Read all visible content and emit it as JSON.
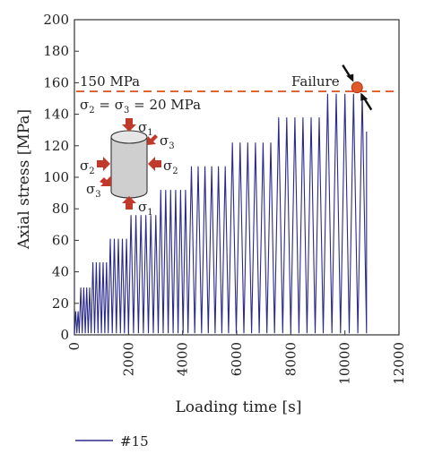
{
  "chart_data": {
    "type": "line",
    "xlabel": "Loading time [s]",
    "ylabel": "Axial stress [MPa]",
    "xlim": [
      0,
      12000
    ],
    "ylim": [
      0,
      200
    ],
    "x_ticks": [
      "0",
      "2000",
      "4000",
      "6000",
      "8000",
      "10000",
      "12000"
    ],
    "y_ticks": [
      "0",
      "20",
      "40",
      "60",
      "80",
      "100",
      "120",
      "140",
      "160",
      "180",
      "200"
    ],
    "legend_placement": "bottom-left",
    "series": [
      {
        "name": "#15",
        "color": "#2b2a8a",
        "stages": [
          {
            "start": 0,
            "end": 180,
            "peak": 15,
            "cycles": 2
          },
          {
            "start": 180,
            "end": 620,
            "peak": 30,
            "cycles": 4
          },
          {
            "start": 620,
            "end": 1250,
            "peak": 46,
            "cycles": 5
          },
          {
            "start": 1250,
            "end": 2000,
            "peak": 61,
            "cycles": 5
          },
          {
            "start": 2000,
            "end": 3100,
            "peak": 76,
            "cycles": 6
          },
          {
            "start": 3100,
            "end": 4200,
            "peak": 92,
            "cycles": 6
          },
          {
            "start": 4200,
            "end": 5700,
            "peak": 107,
            "cycles": 6
          },
          {
            "start": 5700,
            "end": 7400,
            "peak": 122,
            "cycles": 6
          },
          {
            "start": 7400,
            "end": 9200,
            "peak": 138,
            "cycles": 6
          },
          {
            "start": 9200,
            "end": 10800,
            "peak": 153,
            "cycles": 5
          }
        ],
        "failure_point": {
          "x": 10450,
          "y": 157
        }
      }
    ],
    "reference_line": {
      "y": 154.5,
      "label": "150 MPa",
      "color": "#e05a2a"
    },
    "annotations": {
      "confining_pressure": "σ2 = σ3 = 20 MPa",
      "failure_label": "Failure"
    }
  },
  "specimen": {
    "sigma1_top": "σ1",
    "sigma1_bottom": "σ1",
    "sigma2_left": "σ2",
    "sigma2_right": "σ2",
    "sigma3_left": "σ3",
    "sigma3_right": "σ3",
    "arrow_color": "#c0392b"
  },
  "legend": {
    "label": "#15",
    "color": "#2b2a8a"
  }
}
